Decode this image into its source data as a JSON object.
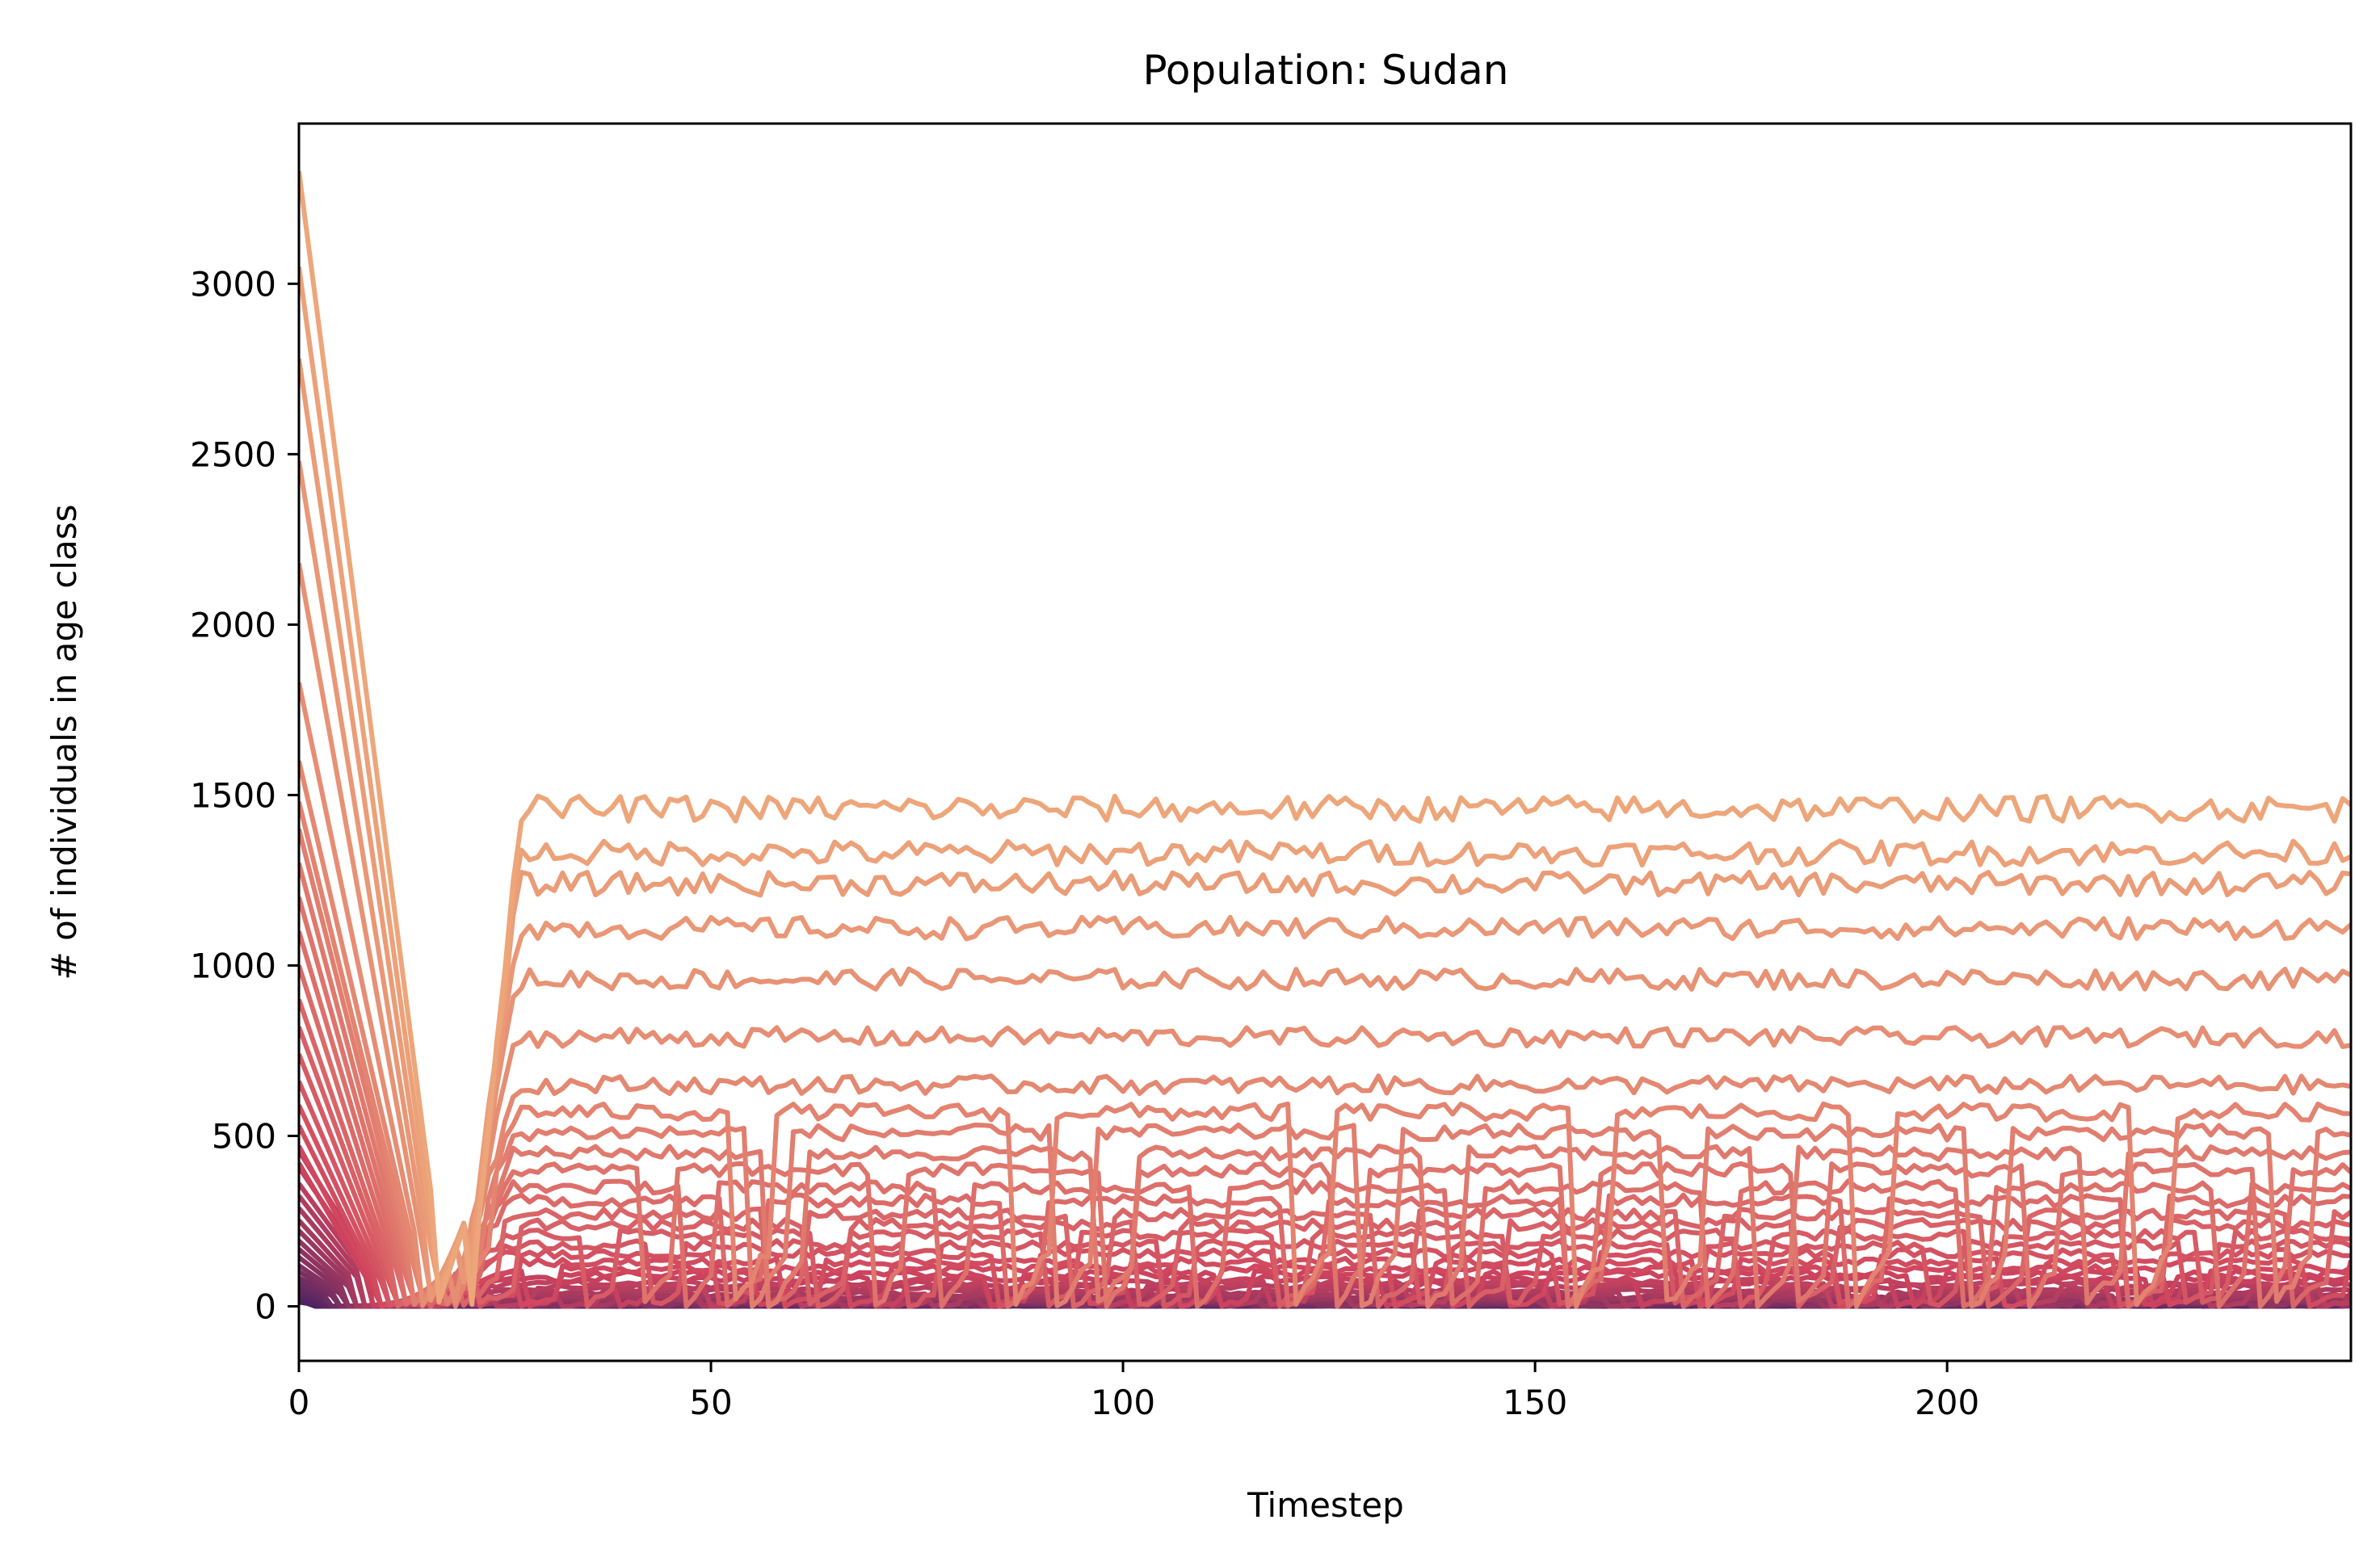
{
  "chart_data": {
    "type": "line",
    "title": "Population: Sudan",
    "xlabel": "Timestep",
    "ylabel": "# of individuals in age class",
    "xlim": [
      0,
      249
    ],
    "ylim": [
      -160,
      3470
    ],
    "xticks": [
      0,
      50,
      100,
      150,
      200
    ],
    "yticks": [
      0,
      500,
      1000,
      1500,
      2000,
      2500,
      3000
    ],
    "grid": false,
    "legend": "none",
    "colormap": "flare",
    "color_light": "#eda67a",
    "color_mid": "#d0445e",
    "color_dark": "#4b2362",
    "series_count": 40,
    "timesteps": 250,
    "series_start_values": [
      3330,
      3050,
      2780,
      2480,
      2180,
      1830,
      1600,
      1480,
      1400,
      1300,
      1200,
      1100,
      1000,
      900,
      820,
      740,
      660,
      590,
      530,
      470,
      420,
      380,
      340,
      300,
      270,
      240,
      210,
      185,
      160,
      140,
      120,
      100,
      85,
      70,
      58,
      46,
      36,
      27,
      18,
      10
    ],
    "series_equilibrium_values": [
      1460,
      1330,
      1240,
      1110,
      960,
      790,
      650,
      570,
      510,
      450,
      400,
      350,
      310,
      270,
      240,
      210,
      180,
      155,
      130,
      110,
      95,
      80,
      68,
      57,
      47,
      39,
      32,
      26,
      21,
      17,
      14,
      11,
      9,
      7,
      5,
      4,
      3,
      2,
      1,
      0
    ],
    "series_noise_amplitude": [
      38,
      36,
      34,
      32,
      30,
      28,
      26,
      24,
      22,
      20,
      19,
      18,
      17,
      16,
      15,
      14,
      13,
      12,
      11,
      10,
      9,
      8,
      7,
      6,
      5,
      5,
      4,
      4,
      3,
      3,
      3,
      2,
      2,
      2,
      2,
      1,
      1,
      1,
      1,
      1
    ]
  }
}
